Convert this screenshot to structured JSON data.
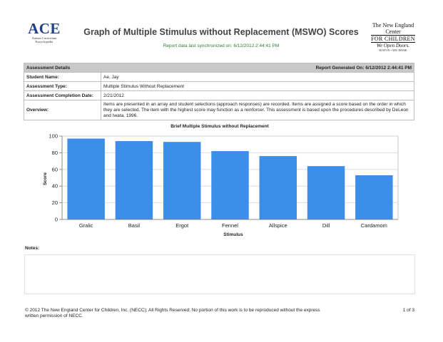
{
  "header": {
    "logo_left": {
      "name": "ACE",
      "subtitle": "Autism Curriculum Encyclopedia"
    },
    "title": "Graph of Multiple Stimulus without Replacement (MSWO) Scores",
    "sync_text": "Report data last synchronized on: 6/12/2012 2:44:41 PM",
    "logo_right": {
      "line1": "The New England Center",
      "line2": "FOR CHILDREN",
      "tagline": "We Open Doors.",
      "location": "BOSTON • ABU DHABI"
    }
  },
  "details": {
    "section_label": "Assessment Details",
    "report_generated": "Report Generated On: 6/12/2012 2:44:41 PM",
    "rows": [
      {
        "label": "Student Name:",
        "value": "Ae, Jay"
      },
      {
        "label": "Assessment Type:",
        "value": "Multiple Stimulus Without Replacement"
      },
      {
        "label": "Assessment Completion Date:",
        "value": "2/21/2012"
      }
    ],
    "overview_label": "Overview:",
    "overview_text": "Items are presented in an array and student selections (approach responses) are recorded.  Items are assigned a score based on the order in which they are selected.  The item with the highest score may function as a reinforcer.  This assessment is based upon the procedures described by DeLeon and Iwata, 1996."
  },
  "chart_data": {
    "type": "bar",
    "title": "Brief Multiple Stimulus without Replacement",
    "xlabel": "Stimulus",
    "ylabel": "Score",
    "categories": [
      "Gralic",
      "Basil",
      "Ergot",
      "Fennel",
      "Allspice",
      "Dill",
      "Cardamom"
    ],
    "values": [
      97,
      94,
      93,
      82,
      76,
      64,
      53
    ],
    "ylim": [
      0,
      100
    ],
    "yticks": [
      0,
      20,
      40,
      60,
      80,
      100
    ],
    "grid": true,
    "bar_color": "#3d8ee8"
  },
  "notes": {
    "label": "Notes:"
  },
  "footer": {
    "copyright": "© 2012 The New England Center for Children, Inc. (NECC); All Rights Reserved; No portion of this work is to be reproduced without the express written permission of NECC.",
    "page": "1 of 3"
  }
}
